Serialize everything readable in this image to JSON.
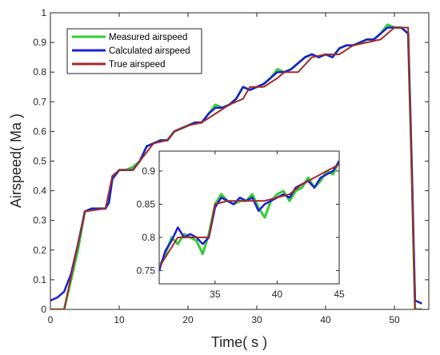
{
  "chart_data": {
    "type": "line",
    "xlabel": "Time( s )",
    "ylabel": "Airspeed( Ma )",
    "xlim": [
      0,
      55
    ],
    "ylim": [
      0,
      1
    ],
    "xticks": [
      0,
      10,
      20,
      30,
      40,
      50
    ],
    "xtick_labels": [
      "0",
      "10",
      "20",
      "30",
      "40",
      "50"
    ],
    "yticks": [
      0,
      0.1,
      0.2,
      0.3,
      0.4,
      0.5,
      0.6,
      0.7,
      0.8,
      0.9,
      1
    ],
    "ytick_labels": [
      "0",
      "0.1",
      "0.2",
      "0.3",
      "0.4",
      "0.5",
      "0.6",
      "0.7",
      "0.8",
      "0.9",
      "1"
    ],
    "legend_position": "top-left",
    "series": [
      {
        "name": "Measured airspeed",
        "color": "#33cc33",
        "x": [
          0,
          1,
          2,
          3,
          4,
          5,
          6,
          7,
          8,
          8.5,
          9,
          10,
          11,
          12,
          13,
          14,
          15,
          16,
          17,
          18,
          19,
          20,
          21,
          22,
          23,
          24,
          25,
          26,
          27,
          28,
          29,
          30,
          31,
          32,
          33,
          34,
          35,
          36,
          37,
          38,
          39,
          40,
          41,
          42,
          43,
          44,
          45,
          46,
          47,
          48,
          49,
          50,
          51,
          52,
          52.5,
          53,
          54
        ],
        "y": [
          0,
          0,
          0,
          0.1,
          0.2,
          0.33,
          0.34,
          0.34,
          0.34,
          0.36,
          0.44,
          0.47,
          0.47,
          0.48,
          0.5,
          0.55,
          0.56,
          0.57,
          0.57,
          0.6,
          0.61,
          0.62,
          0.63,
          0.63,
          0.66,
          0.69,
          0.68,
          0.69,
          0.71,
          0.75,
          0.74,
          0.75,
          0.76,
          0.78,
          0.81,
          0.8,
          0.81,
          0.83,
          0.85,
          0.86,
          0.85,
          0.86,
          0.85,
          0.88,
          0.89,
          0.89,
          0.9,
          0.91,
          0.91,
          0.93,
          0.96,
          0.95,
          0.95,
          0.93,
          0.5,
          0,
          0
        ]
      },
      {
        "name": "Calculated airspeed",
        "color": "#1f1fd6",
        "x": [
          0,
          1,
          2,
          3,
          4,
          5,
          6,
          7,
          8,
          8.5,
          9,
          10,
          11,
          12,
          13,
          14,
          15,
          16,
          17,
          18,
          19,
          20,
          21,
          22,
          23,
          24,
          25,
          26,
          27,
          28,
          29,
          30,
          31,
          32,
          33,
          34,
          35,
          36,
          37,
          38,
          39,
          40,
          41,
          42,
          43,
          44,
          45,
          46,
          47,
          48,
          49,
          50,
          51,
          52,
          52.5,
          53,
          54
        ],
        "y": [
          0.03,
          0.04,
          0.06,
          0.12,
          0.22,
          0.33,
          0.34,
          0.34,
          0.34,
          0.36,
          0.44,
          0.47,
          0.47,
          0.47,
          0.5,
          0.55,
          0.56,
          0.57,
          0.57,
          0.6,
          0.61,
          0.62,
          0.63,
          0.63,
          0.66,
          0.68,
          0.68,
          0.69,
          0.71,
          0.75,
          0.74,
          0.75,
          0.76,
          0.78,
          0.8,
          0.8,
          0.81,
          0.83,
          0.85,
          0.86,
          0.85,
          0.86,
          0.85,
          0.88,
          0.89,
          0.89,
          0.9,
          0.91,
          0.91,
          0.93,
          0.95,
          0.95,
          0.95,
          0.93,
          0.5,
          0.03,
          0.02
        ]
      },
      {
        "name": "True airspeed",
        "color": "#a52a2a",
        "x": [
          0,
          1,
          2,
          5,
          8,
          9,
          10,
          12,
          13,
          15,
          17,
          18,
          20,
          22,
          24,
          26,
          28,
          29,
          31,
          33,
          34,
          36,
          38,
          40,
          42,
          44,
          46,
          48,
          50,
          51.5,
          52,
          53,
          54
        ],
        "y": [
          0,
          0,
          0,
          0.33,
          0.34,
          0.45,
          0.47,
          0.47,
          0.5,
          0.56,
          0.57,
          0.6,
          0.62,
          0.63,
          0.66,
          0.69,
          0.71,
          0.75,
          0.75,
          0.78,
          0.8,
          0.8,
          0.85,
          0.86,
          0.86,
          0.89,
          0.9,
          0.91,
          0.95,
          0.95,
          0.95,
          0,
          0
        ]
      }
    ],
    "inset": {
      "xlim": [
        30.5,
        45
      ],
      "ylim": [
        0.73,
        0.93
      ],
      "xticks": [
        35,
        40,
        45
      ],
      "xtick_labels": [
        "35",
        "40",
        "45"
      ],
      "yticks": [
        0.75,
        0.8,
        0.85,
        0.9
      ],
      "ytick_labels": [
        "0.75",
        "0.8",
        "0.85",
        "0.9"
      ],
      "series": [
        {
          "name": "Measured airspeed",
          "color": "#33cc33",
          "x": [
            30.5,
            31,
            31.5,
            32,
            32.5,
            33,
            33.5,
            34,
            34.5,
            35,
            35.5,
            36,
            36.5,
            37,
            37.5,
            38,
            38.5,
            39,
            39.5,
            40,
            40.5,
            41,
            41.5,
            42,
            42.5,
            43,
            43.5,
            44,
            44.5,
            45
          ],
          "y": [
            0.755,
            0.775,
            0.8,
            0.79,
            0.805,
            0.8,
            0.795,
            0.775,
            0.805,
            0.85,
            0.865,
            0.855,
            0.85,
            0.855,
            0.855,
            0.865,
            0.845,
            0.83,
            0.855,
            0.865,
            0.87,
            0.855,
            0.87,
            0.875,
            0.89,
            0.875,
            0.885,
            0.9,
            0.895,
            0.915
          ]
        },
        {
          "name": "Calculated airspeed",
          "color": "#1f1fd6",
          "x": [
            30.5,
            31,
            31.5,
            32,
            32.5,
            33,
            33.5,
            34,
            34.5,
            35,
            35.5,
            36,
            36.5,
            37,
            37.5,
            38,
            38.5,
            39,
            39.5,
            40,
            40.5,
            41,
            41.5,
            42,
            42.5,
            43,
            43.5,
            44,
            44.5,
            45
          ],
          "y": [
            0.75,
            0.78,
            0.795,
            0.815,
            0.8,
            0.805,
            0.8,
            0.79,
            0.8,
            0.845,
            0.86,
            0.855,
            0.85,
            0.86,
            0.855,
            0.86,
            0.84,
            0.85,
            0.855,
            0.86,
            0.865,
            0.86,
            0.875,
            0.88,
            0.885,
            0.875,
            0.89,
            0.895,
            0.9,
            0.915
          ]
        },
        {
          "name": "True airspeed",
          "color": "#a52a2a",
          "x": [
            30.5,
            32,
            34.5,
            35,
            36,
            38,
            39,
            41,
            42,
            44,
            45
          ],
          "y": [
            0.755,
            0.8,
            0.8,
            0.85,
            0.855,
            0.855,
            0.855,
            0.865,
            0.88,
            0.9,
            0.91
          ]
        }
      ]
    }
  }
}
